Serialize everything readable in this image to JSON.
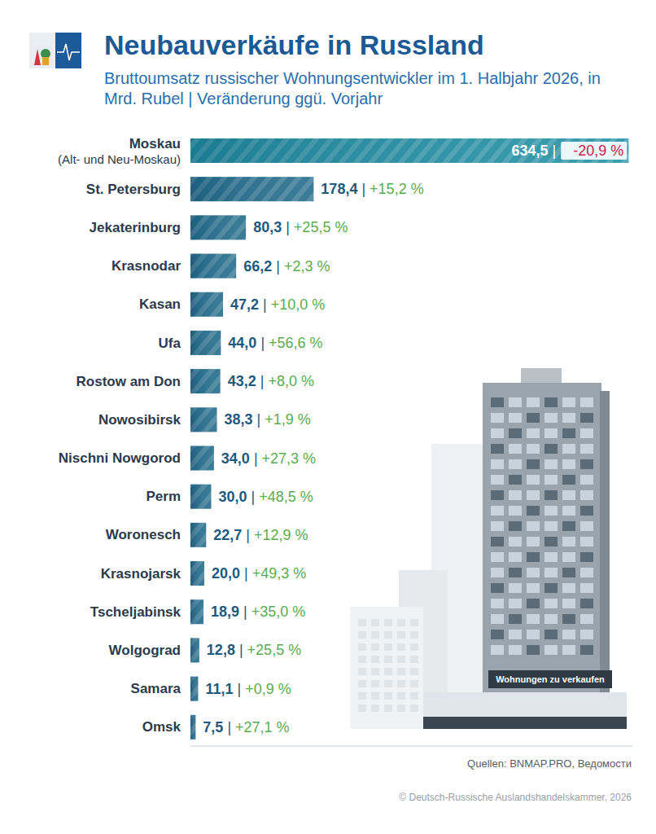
{
  "chart_data": {
    "type": "bar",
    "orientation": "horizontal",
    "title": "Neubauverkäufe in Russland",
    "subtitle": "Bruttoumsatz russischer Wohnungsentwickler im 1. Halbjahr 2026, in Mrd. Rubel | Veränderung ggü. Vorjahr",
    "categories": [
      "Moskau\n(Alt- und Neu-Moskau)",
      "St. Petersburg",
      "Jekaterinburg",
      "Krasnodar",
      "Kasan",
      "Ufa",
      "Rostow am Don",
      "Nowosibirsk",
      "Nischni Nowgorod",
      "Perm",
      "Woronesch",
      "Krasnojarsk",
      "Tscheljabinsk",
      "Wolgograd",
      "Samara",
      "Omsk"
    ],
    "values": [
      634.5,
      178.4,
      80.3,
      66.2,
      47.2,
      44.0,
      43.2,
      38.3,
      34.0,
      30.0,
      22.7,
      20.0,
      18.9,
      12.8,
      11.1,
      7.5
    ],
    "value_labels": [
      "634,5",
      "178,4",
      "80,3",
      "66,2",
      "47,2",
      "44,0",
      "43,2",
      "38,3",
      "34,0",
      "30,0",
      "22,7",
      "20,0",
      "18,9",
      "12,8",
      "11,1",
      "7,5"
    ],
    "changes": [
      -20.9,
      15.2,
      25.5,
      2.3,
      10.0,
      56.6,
      8.0,
      1.9,
      27.3,
      48.5,
      12.9,
      49.3,
      35.0,
      25.5,
      0.9,
      27.1
    ],
    "change_labels": [
      "-20,9 %",
      "+15,2 %",
      "+25,5 %",
      "+2,3 %",
      "+10,0 %",
      "+56,6 %",
      "+8,0 %",
      "+1,9 %",
      "+27,3 %",
      "+48,5 %",
      "+12,9 %",
      "+49,3 %",
      "+35,0 %",
      "+25,5 %",
      "+0,9 %",
      "+27,1 %"
    ],
    "label_separator": "|",
    "colors": [
      "#1f8fa3",
      "#1f6a8a",
      "#1f6a8a",
      "#1f6a8a",
      "#1f6a8a",
      "#1f6a8a",
      "#1f6a8a",
      "#1f6a8a",
      "#1f6a8a",
      "#1f6a8a",
      "#1f6a8a",
      "#1f6a8a",
      "#1f6a8a",
      "#1f6a8a",
      "#1f6a8a",
      "#1f6a8a"
    ],
    "xlim": [
      0,
      640
    ],
    "xticks": [],
    "tick_labels": "y",
    "data_labels": true,
    "grid": false,
    "sources": "Quellen: BNMAP.PRO, Ведомости",
    "copyright": "© Deutsch-Russische Auslandshandelskammer, 2026",
    "illustration_text": "Wohnungen zu verkaufen"
  }
}
